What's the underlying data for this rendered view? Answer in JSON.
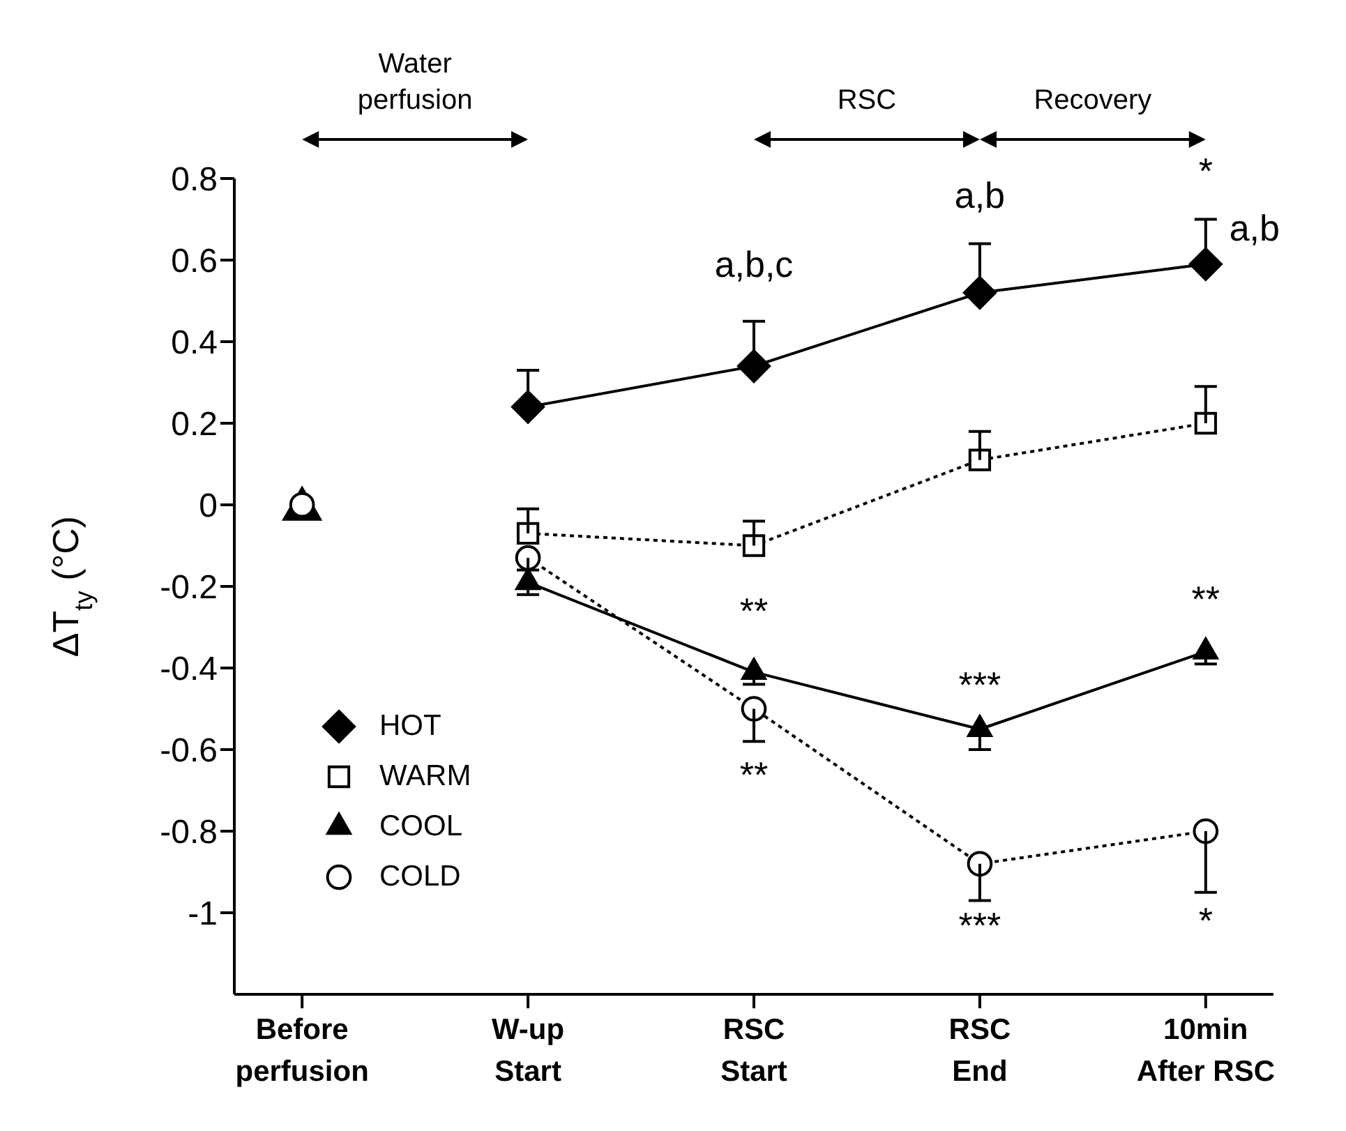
{
  "chart_data": {
    "type": "line",
    "ylabel": "ΔT$_{ty}$ (°C)",
    "categories": [
      "Before perfusion",
      "W-up Start",
      "RSC Start",
      "RSC End",
      "10min After RSC"
    ],
    "ylim": [
      -1.2,
      0.8
    ],
    "yticks": [
      -1,
      -0.8,
      -0.6,
      -0.4,
      -0.2,
      0,
      0.2,
      0.4,
      0.6,
      0.8
    ],
    "legend": "bottom left",
    "series": [
      {
        "name": "HOT",
        "color": "#000000",
        "marker": "diamond",
        "line_style": "solid",
        "values": [
          null,
          0.24,
          0.34,
          0.52,
          0.59
        ],
        "errors": [
          null,
          [
            0.24,
            0.33
          ],
          [
            0.34,
            0.45
          ],
          [
            0.52,
            0.64
          ],
          [
            0.59,
            0.7
          ]
        ]
      },
      {
        "name": "WARM",
        "color": "#000000",
        "marker": "square",
        "line_style": "dotted",
        "values": [
          null,
          -0.07,
          -0.1,
          0.11,
          0.2
        ],
        "errors": [
          null,
          [
            -0.07,
            -0.01
          ],
          [
            -0.1,
            -0.04
          ],
          [
            0.11,
            0.18
          ],
          [
            0.2,
            0.29
          ]
        ]
      },
      {
        "name": "COOL",
        "color": "#000000",
        "marker": "triangle",
        "line_style": "solid",
        "values": [
          null,
          -0.19,
          -0.41,
          -0.55,
          -0.36
        ],
        "errors": [
          null,
          [
            -0.22,
            -0.19
          ],
          [
            -0.44,
            -0.41
          ],
          [
            -0.6,
            -0.55
          ],
          [
            -0.39,
            -0.36
          ]
        ]
      },
      {
        "name": "COLD",
        "color": "#000000",
        "marker": "circle",
        "line_style": "dotted",
        "values": [
          null,
          -0.13,
          -0.5,
          -0.88,
          -0.8
        ],
        "errors": [
          null,
          [
            -0.16,
            -0.13
          ],
          [
            -0.58,
            -0.5
          ],
          [
            -0.97,
            -0.88
          ],
          [
            -0.95,
            -0.8
          ]
        ]
      },
      {
        "type": "scatter",
        "color": "#000000",
        "marker": "triangle",
        "x": [
          "Before perfusion"
        ],
        "values": [
          -0.01
        ]
      },
      {
        "type": "scatter",
        "color": "#000000",
        "marker": "circle",
        "line_style": "dotted",
        "x": [
          "Before perfusion"
        ],
        "values": [
          0
        ]
      }
    ],
    "annotations": [
      "Water perfusion",
      "RSC",
      "Recovery",
      {
        "text": "a,b,c",
        "x": "RSC Start",
        "y": 0.34
      },
      {
        "text": "a,b",
        "x": "RSC End",
        "y": 0.52
      },
      {
        "text": "*",
        "x": "10min After RSC",
        "y": 0.59
      },
      {
        "text": "a,b",
        "x": "10min After RSC",
        "y": 0.59
      },
      {
        "text": "**",
        "x": "RSC Start",
        "y": -0.41
      },
      {
        "text": "**",
        "x": "RSC Start",
        "y": -0.5
      },
      {
        "text": "***",
        "x": "RSC End",
        "y": -0.55
      },
      {
        "text": "***",
        "x": "RSC End",
        "y": -0.88
      },
      {
        "text": "**",
        "x": "10min After RSC",
        "y": -0.36
      },
      {
        "text": "*",
        "x": "10min After RSC",
        "y": -0.8
      }
    ]
  }
}
